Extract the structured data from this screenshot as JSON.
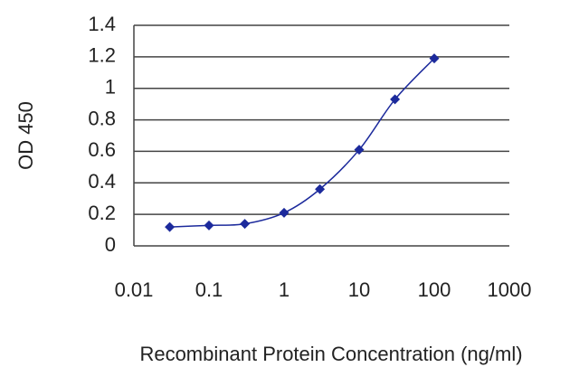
{
  "chart_data": {
    "type": "line",
    "x_label": "Recombinant Protein Concentration (ng/ml)",
    "y_label": "OD 450",
    "x": [
      0.03,
      0.1,
      0.3,
      1,
      3,
      10,
      30,
      100
    ],
    "series": [
      {
        "color": "#1c2a9c",
        "values": [
          0.12,
          0.13,
          0.14,
          0.21,
          0.36,
          0.61,
          0.93,
          1.19
        ]
      }
    ],
    "xlim": [
      0.01,
      1000
    ],
    "xticks": [
      0.01,
      0.1,
      1,
      10,
      100,
      1000
    ],
    "xlog": true,
    "ylim": [
      0,
      1.4
    ],
    "yticks": [
      0,
      0.2,
      0.4,
      0.6,
      0.8,
      1,
      1.2,
      1.4
    ],
    "grid": true
  }
}
